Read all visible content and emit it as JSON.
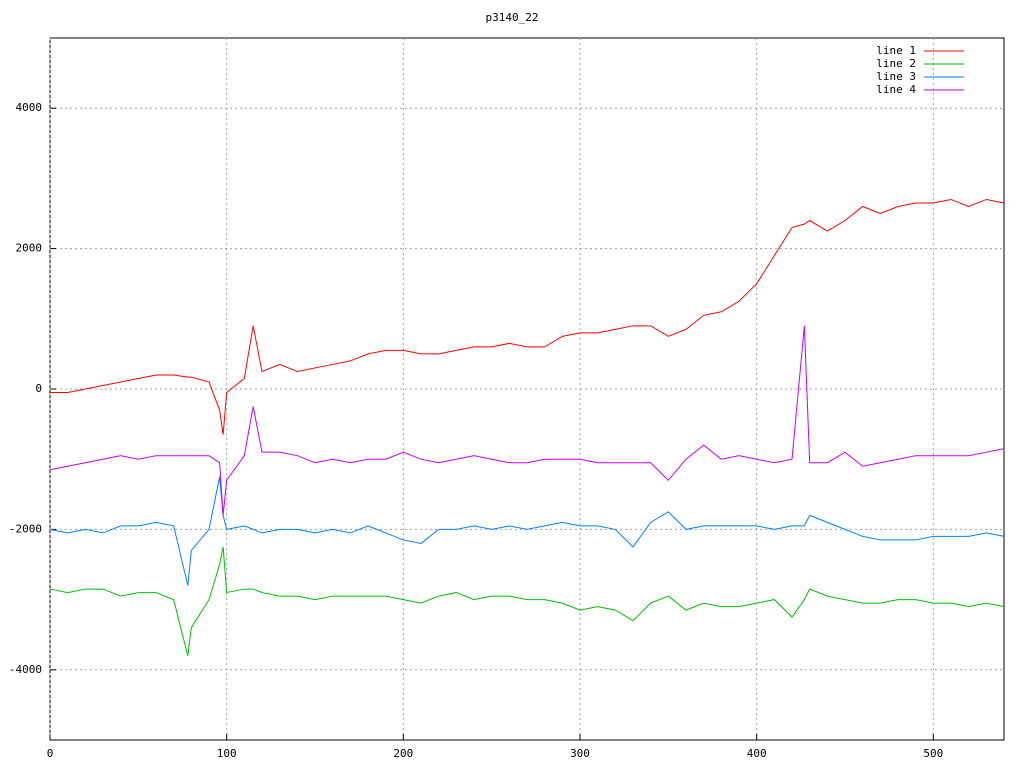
{
  "chart_data": {
    "type": "line",
    "title": "p3140_22",
    "x": [
      0,
      10,
      20,
      30,
      40,
      50,
      60,
      70,
      78,
      80,
      90,
      96,
      98,
      100,
      110,
      115,
      120,
      130,
      140,
      150,
      160,
      170,
      180,
      190,
      200,
      210,
      220,
      230,
      240,
      250,
      260,
      270,
      280,
      290,
      300,
      310,
      320,
      330,
      340,
      350,
      360,
      370,
      380,
      390,
      400,
      410,
      420,
      427,
      430,
      440,
      450,
      460,
      470,
      480,
      490,
      500,
      510,
      520,
      530,
      540
    ],
    "series": [
      {
        "name": "line 1",
        "color": "#ff0000",
        "values": [
          -50,
          -50,
          0,
          50,
          100,
          150,
          200,
          200,
          170,
          170,
          100,
          -300,
          -650,
          -50,
          150,
          900,
          250,
          350,
          250,
          300,
          350,
          400,
          500,
          550,
          550,
          500,
          500,
          550,
          600,
          600,
          650,
          600,
          600,
          750,
          800,
          800,
          850,
          900,
          900,
          750,
          850,
          1050,
          1100,
          1250,
          1500,
          1900,
          2300,
          2350,
          2400,
          2250,
          2400,
          2600,
          2500,
          2600,
          2650,
          2650,
          2700,
          2600,
          2700,
          2650
        ]
      },
      {
        "name": "line 2",
        "color": "#00c000",
        "values": [
          -2850,
          -2900,
          -2850,
          -2850,
          -2950,
          -2900,
          -2900,
          -3000,
          -3800,
          -3400,
          -3000,
          -2500,
          -2250,
          -2900,
          -2850,
          -2850,
          -2900,
          -2950,
          -2950,
          -3000,
          -2950,
          -2950,
          -2950,
          -2950,
          -3000,
          -3050,
          -2950,
          -2900,
          -3000,
          -2950,
          -2950,
          -3000,
          -3000,
          -3050,
          -3150,
          -3100,
          -3150,
          -3300,
          -3050,
          -2950,
          -3150,
          -3050,
          -3100,
          -3100,
          -3050,
          -3000,
          -3250,
          -3000,
          -2850,
          -2950,
          -3000,
          -3050,
          -3050,
          -3000,
          -3000,
          -3050,
          -3050,
          -3100,
          -3050,
          -3100
        ]
      },
      {
        "name": "line 3",
        "color": "#0080ff",
        "values": [
          -2000,
          -2050,
          -2000,
          -2050,
          -1950,
          -1950,
          -1900,
          -1950,
          -2800,
          -2300,
          -2000,
          -1250,
          -1800,
          -2000,
          -1950,
          -2000,
          -2050,
          -2000,
          -2000,
          -2050,
          -2000,
          -2050,
          -1950,
          -2050,
          -2150,
          -2200,
          -2000,
          -2000,
          -1950,
          -2000,
          -1950,
          -2000,
          -1950,
          -1900,
          -1950,
          -1950,
          -2000,
          -2250,
          -1900,
          -1750,
          -2000,
          -1950,
          -1950,
          -1950,
          -1950,
          -2000,
          -1950,
          -1950,
          -1800,
          -1900,
          -2000,
          -2100,
          -2150,
          -2150,
          -2150,
          -2100,
          -2100,
          -2100,
          -2050,
          -2100
        ]
      },
      {
        "name": "line 4",
        "color": "#c000ff",
        "values": [
          -1150,
          -1100,
          -1050,
          -1000,
          -950,
          -1000,
          -950,
          -950,
          -950,
          -950,
          -950,
          -1050,
          -1800,
          -1300,
          -950,
          -250,
          -900,
          -900,
          -950,
          -1050,
          -1000,
          -1050,
          -1000,
          -1000,
          -900,
          -1000,
          -1050,
          -1000,
          -950,
          -1000,
          -1050,
          -1050,
          -1000,
          -1000,
          -1000,
          -1050,
          -1050,
          -1050,
          -1050,
          -1300,
          -1000,
          -800,
          -1000,
          -950,
          -1000,
          -1050,
          -1000,
          900,
          -1050,
          -1050,
          -900,
          -1100,
          -1050,
          -1000,
          -950,
          -950,
          -950,
          -950,
          -900,
          -850
        ]
      }
    ],
    "xlim": [
      0,
      540
    ],
    "ylim": [
      -5000,
      5000
    ],
    "xticks": [
      0,
      100,
      200,
      300,
      400,
      500
    ],
    "yticks": [
      -4000,
      -2000,
      0,
      2000,
      4000
    ],
    "grid": true,
    "legend": "top-right"
  }
}
